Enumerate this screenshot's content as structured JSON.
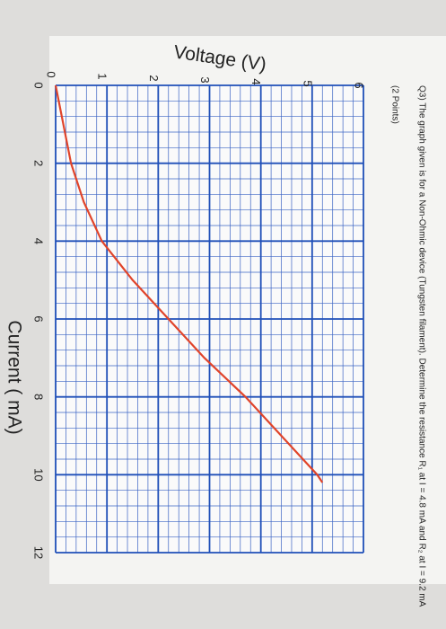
{
  "chart_data": {
    "type": "line",
    "question": "Q3) The graph given is for a Non-Ohmic device (Tungsten filament). Determine the resistance R₁ at I = 4.8 mA and R₂ at I = 9.2 mA",
    "points_note": "(2 Points)",
    "x_label": "Current ( mA)",
    "y_label": "Voltage (V)",
    "x": [
      0,
      1,
      2,
      3,
      4,
      5,
      6,
      7,
      8,
      9,
      10,
      10.2
    ],
    "series": [
      {
        "color": "#e0442a",
        "values": [
          0,
          0.15,
          0.3,
          0.55,
          0.9,
          1.5,
          2.2,
          2.9,
          3.7,
          4.4,
          5.1,
          5.2
        ]
      }
    ],
    "xlim": [
      0,
      12
    ],
    "xticks": [
      0,
      2,
      4,
      6,
      8,
      10,
      12
    ],
    "ylim": [
      0,
      6
    ],
    "yticks": [
      0,
      1,
      2,
      3,
      4,
      5,
      6
    ],
    "grid": true
  }
}
